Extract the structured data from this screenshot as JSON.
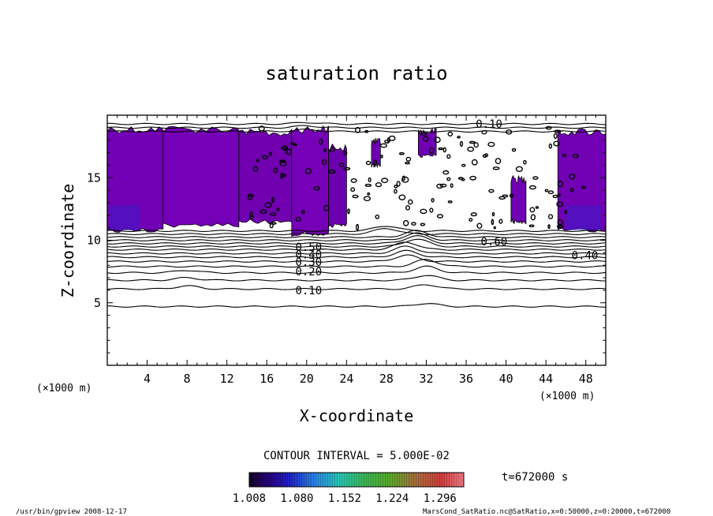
{
  "chart_data": {
    "type": "heatmap",
    "title": "saturation ratio",
    "xlabel": "X-coordinate",
    "ylabel": "Z-coordinate",
    "x_unit": "(×1000 m)",
    "y_unit": "(×1000 m)",
    "xlim": [
      0,
      50
    ],
    "ylim": [
      0,
      20
    ],
    "x_ticks": [
      4,
      8,
      12,
      16,
      20,
      24,
      28,
      32,
      36,
      40,
      44,
      48
    ],
    "y_ticks": [
      5,
      10,
      15
    ],
    "contour_interval_text": "CONTOUR INTERVAL = 5.000E-02",
    "contour_labels": [
      {
        "text": "0.10",
        "x": 20.2,
        "z": 6.0
      },
      {
        "text": "0.20",
        "x": 20.2,
        "z": 7.5
      },
      {
        "text": "0.30",
        "x": 20.2,
        "z": 8.25
      },
      {
        "text": "0.40",
        "x": 20.2,
        "z": 8.85
      },
      {
        "text": "0.50",
        "x": 20.2,
        "z": 9.45
      },
      {
        "text": "0.60",
        "x": 38.8,
        "z": 9.9
      },
      {
        "text": "0.40",
        "x": 47.9,
        "z": 8.8
      },
      {
        "text": "0.10",
        "x": 38.3,
        "z": 19.3
      }
    ],
    "colorbar": {
      "min": 1.008,
      "max": 1.332,
      "tick_labels": [
        "1.008",
        "1.080",
        "1.152",
        "1.224",
        "1.296"
      ]
    },
    "time_label": "t=672000 s",
    "filled_regions": [
      {
        "x": [
          0,
          5.6
        ],
        "z": [
          10.8,
          19.0
        ],
        "color": "#7200b4"
      },
      {
        "x": [
          5.6,
          13.2
        ],
        "z": [
          11.2,
          19.0
        ],
        "color": "#7400b8"
      },
      {
        "x": [
          13.2,
          18.5
        ],
        "z": [
          11.5,
          18.7
        ],
        "color": "#7000b0"
      },
      {
        "x": [
          18.5,
          22.2
        ],
        "z": [
          10.5,
          19.0
        ],
        "color": "#7600b8"
      },
      {
        "x": [
          22.2,
          24.0
        ],
        "z": [
          11.2,
          17.5
        ],
        "color": "#6c00b0"
      },
      {
        "x": [
          26.5,
          27.4
        ],
        "z": [
          16.0,
          18.0
        ],
        "color": "#7000b4"
      },
      {
        "x": [
          31.2,
          33.0
        ],
        "z": [
          16.8,
          18.8
        ],
        "color": "#7000b4"
      },
      {
        "x": [
          40.5,
          42.0
        ],
        "z": [
          11.5,
          15.0
        ],
        "color": "#7000b4"
      },
      {
        "x": [
          45.2,
          50.0
        ],
        "z": [
          10.8,
          18.8
        ],
        "color": "#7200b4"
      }
    ],
    "contour_levels": [
      {
        "z": 4.7,
        "wave": [
          [
            32,
            0.25
          ]
        ]
      },
      {
        "z": 6.1,
        "wave": [
          [
            8,
            0.25
          ],
          [
            32,
            0.35
          ]
        ]
      },
      {
        "z": 6.8,
        "wave": [
          [
            8,
            0.2
          ],
          [
            32,
            0.4
          ]
        ]
      },
      {
        "z": 7.4,
        "wave": [
          [
            8,
            0.2
          ],
          [
            32,
            0.5
          ]
        ]
      },
      {
        "z": 7.9,
        "wave": [
          [
            32,
            0.55
          ]
        ]
      },
      {
        "z": 8.3,
        "wave": [
          [
            30,
            0.5
          ]
        ]
      },
      {
        "z": 8.65,
        "wave": [
          [
            30,
            0.5
          ]
        ]
      },
      {
        "z": 8.95,
        "wave": [
          [
            30,
            0.55
          ]
        ]
      },
      {
        "z": 9.25,
        "wave": [
          [
            30,
            0.6
          ]
        ]
      },
      {
        "z": 9.5,
        "wave": [
          [
            31,
            0.6
          ]
        ]
      },
      {
        "z": 9.75,
        "wave": [
          [
            31,
            0.6
          ]
        ]
      },
      {
        "z": 10.0,
        "wave": [
          [
            31,
            0.55
          ]
        ]
      },
      {
        "z": 10.25,
        "wave": [
          [
            31,
            0.5
          ]
        ]
      },
      {
        "z": 10.5,
        "wave": [
          [
            28,
            0.45
          ]
        ]
      },
      {
        "z": 10.75,
        "wave": [
          [
            28,
            0.4
          ]
        ]
      },
      {
        "z": 18.7,
        "wave": [
          [
            20,
            0.15
          ]
        ]
      },
      {
        "z": 19.0,
        "wave": [
          [
            20,
            0.15
          ]
        ]
      },
      {
        "z": 19.3,
        "wave": [
          [
            20,
            0.12
          ]
        ]
      }
    ]
  },
  "footer": {
    "left": "/usr/bin/gpview  2008-12-17",
    "right": "MarsCond_SatRatio.nc@SatRatio,x=0:50000,z=0:20000,t=672000"
  }
}
